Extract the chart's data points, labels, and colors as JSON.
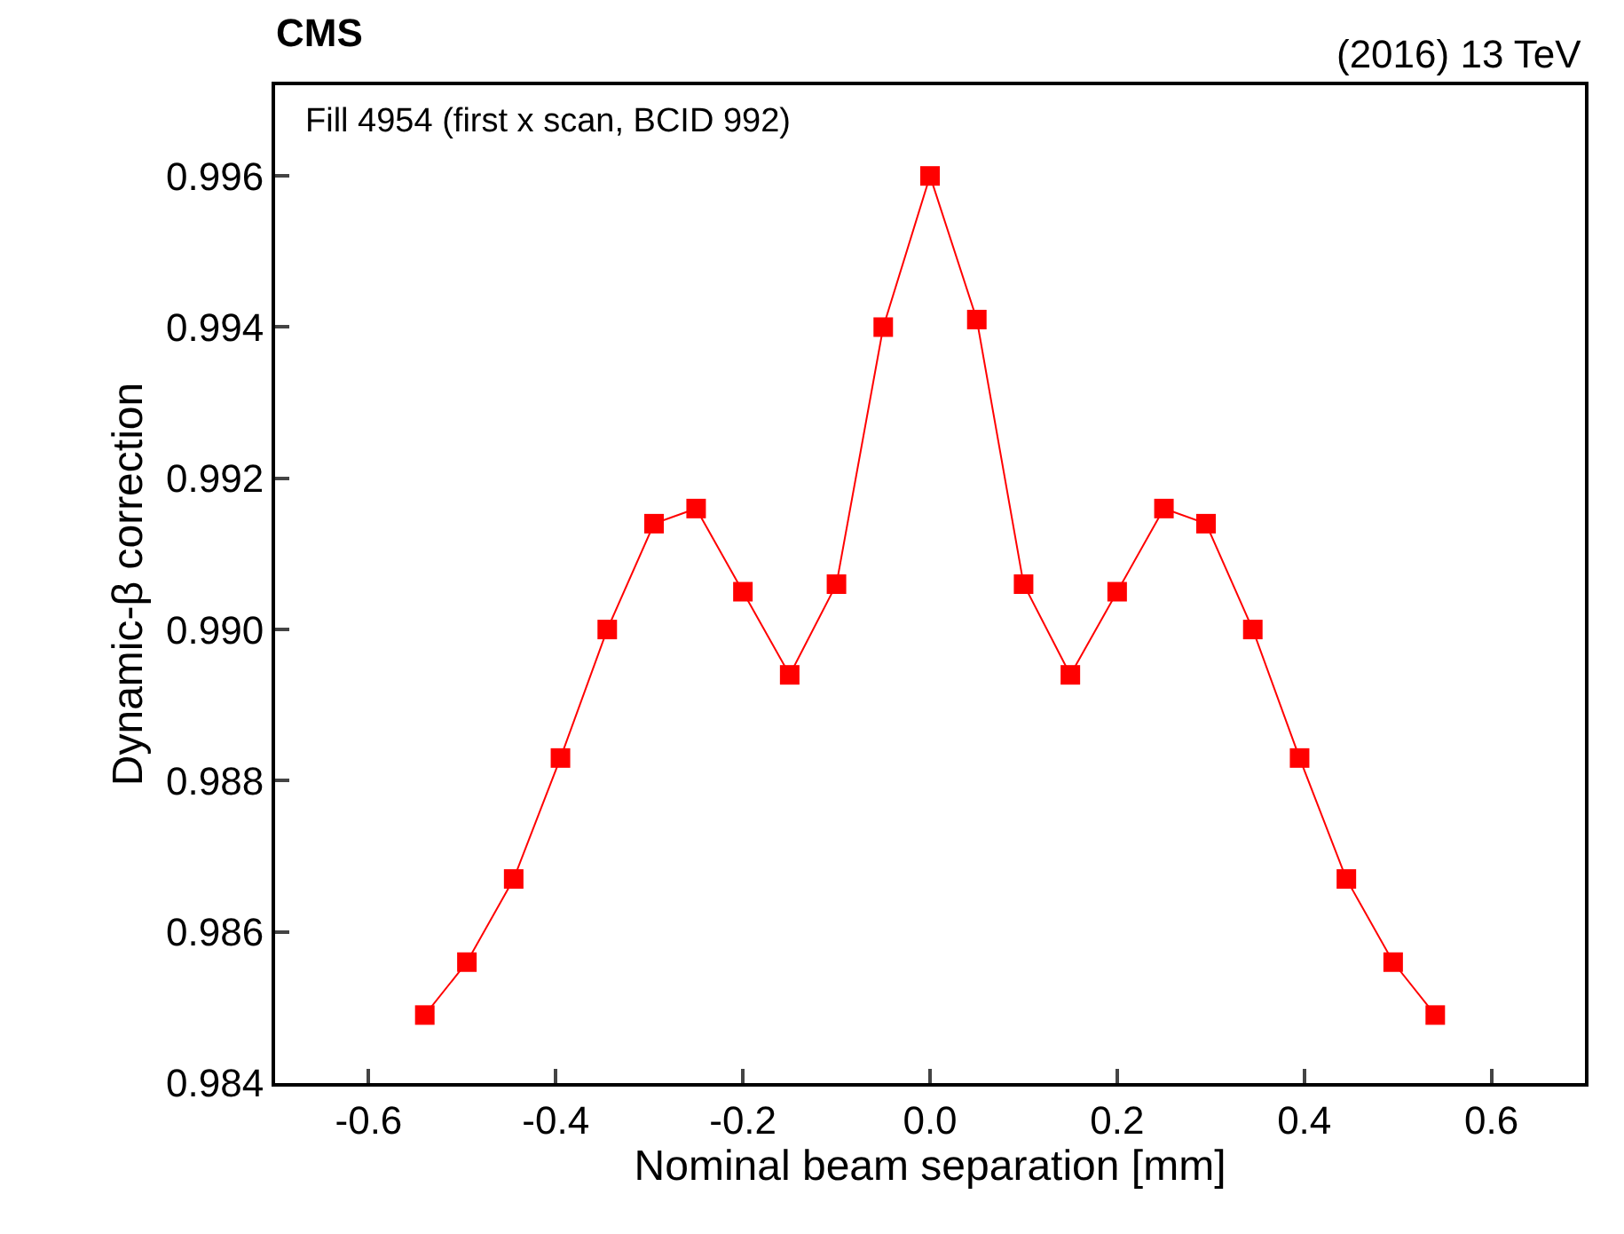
{
  "chart_data": {
    "type": "line",
    "title": "CMS",
    "xlabel": "Nominal beam separation [mm]",
    "ylabel": "Dynamic-β correction",
    "annotations": [
      "(2016) 13 TeV",
      "Fill 4954 (first x scan, BCID 992)"
    ],
    "x": [
      -0.54,
      -0.495,
      -0.445,
      -0.395,
      -0.345,
      -0.295,
      -0.25,
      -0.2,
      -0.15,
      -0.1,
      -0.05,
      0,
      0.05,
      0.1,
      0.15,
      0.2,
      0.25,
      0.295,
      0.345,
      0.395,
      0.445,
      0.495,
      0.54
    ],
    "series": [
      {
        "color": "#ff0000",
        "values": [
          0.9849,
          0.9856,
          0.9867,
          0.9883,
          0.99,
          0.9914,
          0.9916,
          0.9905,
          0.9894,
          0.9906,
          0.994,
          0.996,
          0.9941,
          0.9906,
          0.9894,
          0.9905,
          0.9916,
          0.9914,
          0.99,
          0.9883,
          0.9867,
          0.9856,
          0.9849
        ]
      }
    ],
    "xlim": [
      -0.7,
      0.7
    ],
    "xticks": [
      {
        "value": -0.6,
        "label": "-0.6"
      },
      {
        "value": -0.4,
        "label": "-0.4"
      },
      {
        "value": -0.2,
        "label": "-0.2"
      },
      {
        "value": 0,
        "label": "0.0"
      },
      {
        "value": 0.2,
        "label": "0.2"
      },
      {
        "value": 0.4,
        "label": "0.4"
      },
      {
        "value": 0.6,
        "label": "0.6"
      }
    ],
    "ylim": [
      0.984,
      0.9972
    ],
    "yticks": [
      {
        "value": 0.984,
        "label": "0.984"
      },
      {
        "value": 0.986,
        "label": "0.986"
      },
      {
        "value": 0.988,
        "label": "0.988"
      },
      {
        "value": 0.99,
        "label": "0.990"
      },
      {
        "value": 0.992,
        "label": "0.992"
      },
      {
        "value": 0.994,
        "label": "0.994"
      },
      {
        "value": 0.996,
        "label": "0.996"
      }
    ],
    "marker": "square",
    "line_style": "solid"
  }
}
